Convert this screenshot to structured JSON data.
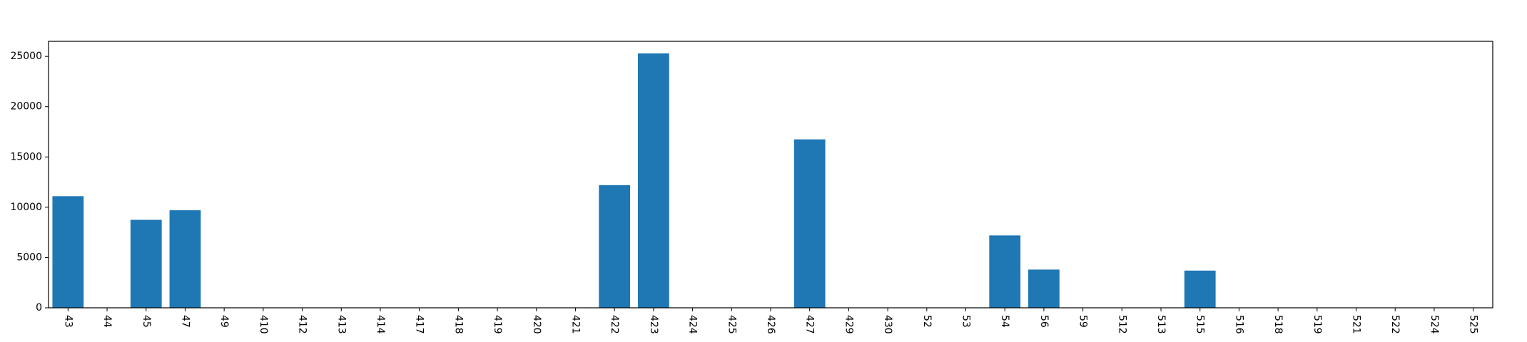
{
  "chart_data": {
    "type": "bar",
    "title": "",
    "xlabel": "",
    "ylabel": "",
    "ylim": [
      0,
      26500
    ],
    "yticks": [
      0,
      5000,
      10000,
      15000,
      20000,
      25000
    ],
    "bar_color": "#1f77b4",
    "grid": false,
    "categories": [
      "43",
      "44",
      "45",
      "47",
      "49",
      "410",
      "412",
      "413",
      "414",
      "417",
      "418",
      "419",
      "420",
      "421",
      "422",
      "423",
      "424",
      "425",
      "426",
      "427",
      "429",
      "430",
      "52",
      "53",
      "54",
      "56",
      "59",
      "512",
      "513",
      "515",
      "516",
      "518",
      "519",
      "521",
      "522",
      "524",
      "525"
    ],
    "values": [
      11100,
      0,
      8750,
      9700,
      0,
      0,
      0,
      0,
      0,
      0,
      0,
      0,
      0,
      0,
      12200,
      25300,
      0,
      0,
      0,
      16750,
      0,
      0,
      0,
      0,
      7200,
      3800,
      0,
      0,
      0,
      3700,
      0,
      0,
      0,
      0,
      0,
      0,
      0
    ]
  }
}
